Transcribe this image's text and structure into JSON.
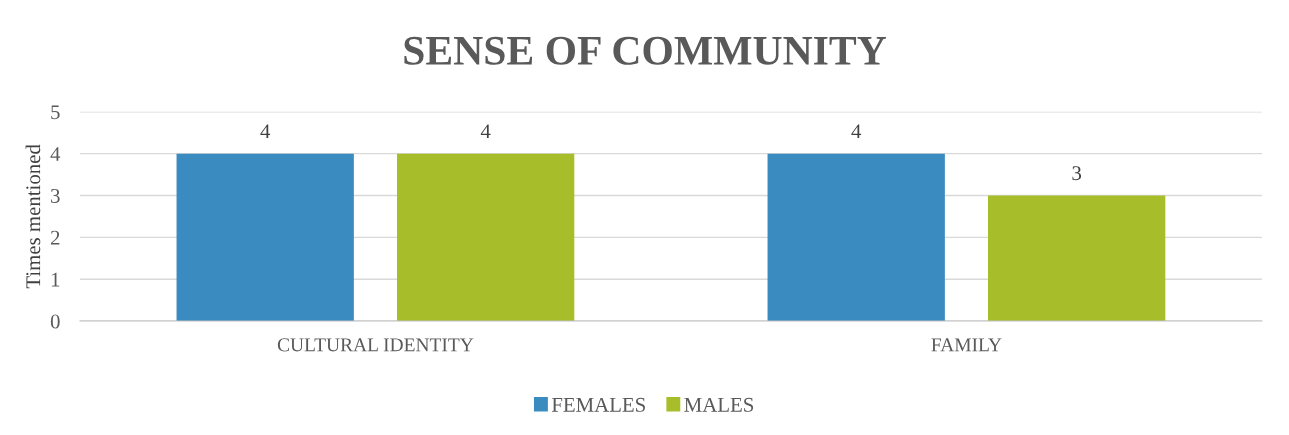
{
  "chart_data": {
    "type": "bar",
    "title": "SENSE OF COMMUNITY",
    "ylabel": "Times mentioned",
    "categories": [
      "CULTURAL IDENTITY",
      "FAMILY"
    ],
    "series": [
      {
        "name": "FEMALES",
        "color": "#3a8bbf",
        "values": [
          4,
          4
        ]
      },
      {
        "name": "MALES",
        "color": "#a8bd2a",
        "values": [
          4,
          3
        ]
      }
    ],
    "ylim": [
      0,
      5
    ],
    "yticks": [
      0,
      1,
      2,
      3,
      4,
      5
    ],
    "grid": "y",
    "legend": "bottom",
    "data_labels": true
  }
}
